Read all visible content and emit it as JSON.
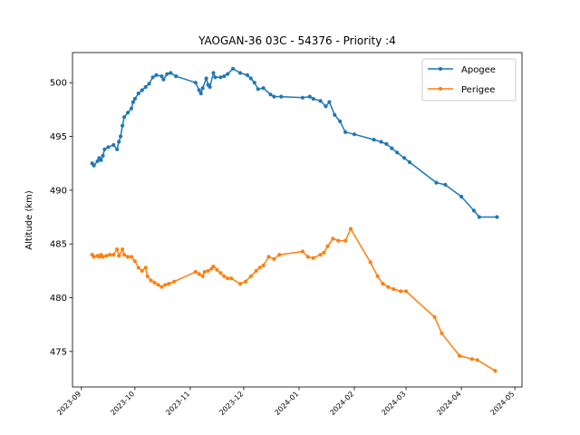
{
  "chart_data": {
    "type": "line",
    "title": "YAOGAN-36 03C - 54376 - Priority :4",
    "xlabel": "",
    "ylabel": "Altitude (km)",
    "xlim": [
      "2023-08-27",
      "2024-05-05"
    ],
    "ylim": [
      471.7,
      502.8
    ],
    "x_ticks": [
      "2023-09",
      "2023-10",
      "2023-11",
      "2023-12",
      "2024-01",
      "2024-02",
      "2024-03",
      "2024-04",
      "2024-05"
    ],
    "y_ticks": [
      475,
      480,
      485,
      490,
      495,
      500
    ],
    "grid": false,
    "legend_position": "top-right",
    "series": [
      {
        "name": "Apogee",
        "color": "#1f77b4",
        "points": [
          [
            "2023-09-07",
            492.5
          ],
          [
            "2023-09-08",
            492.3
          ],
          [
            "2023-09-10",
            492.7
          ],
          [
            "2023-09-11",
            493.0
          ],
          [
            "2023-09-12",
            492.8
          ],
          [
            "2023-09-13",
            493.2
          ],
          [
            "2023-09-14",
            493.8
          ],
          [
            "2023-09-16",
            494.0
          ],
          [
            "2023-09-19",
            494.2
          ],
          [
            "2023-09-21",
            493.8
          ],
          [
            "2023-09-22",
            494.5
          ],
          [
            "2023-09-23",
            495.0
          ],
          [
            "2023-09-24",
            496.0
          ],
          [
            "2023-09-25",
            496.8
          ],
          [
            "2023-09-27",
            497.2
          ],
          [
            "2023-09-29",
            497.6
          ],
          [
            "2023-09-30",
            498.2
          ],
          [
            "2023-10-01",
            498.5
          ],
          [
            "2023-10-03",
            499.0
          ],
          [
            "2023-10-05",
            499.3
          ],
          [
            "2023-10-07",
            499.6
          ],
          [
            "2023-10-09",
            499.9
          ],
          [
            "2023-10-11",
            500.5
          ],
          [
            "2023-10-13",
            500.7
          ],
          [
            "2023-10-16",
            500.6
          ],
          [
            "2023-10-17",
            500.3
          ],
          [
            "2023-10-19",
            500.8
          ],
          [
            "2023-10-21",
            500.9
          ],
          [
            "2023-10-24",
            500.6
          ],
          [
            "2023-11-04",
            500.0
          ],
          [
            "2023-11-06",
            499.3
          ],
          [
            "2023-11-07",
            499.0
          ],
          [
            "2023-11-08",
            499.5
          ],
          [
            "2023-11-10",
            500.4
          ],
          [
            "2023-11-11",
            499.8
          ],
          [
            "2023-11-12",
            499.6
          ],
          [
            "2023-11-14",
            500.9
          ],
          [
            "2023-11-15",
            500.5
          ],
          [
            "2023-11-18",
            500.5
          ],
          [
            "2023-11-20",
            500.6
          ],
          [
            "2023-11-22",
            500.8
          ],
          [
            "2023-11-25",
            501.3
          ],
          [
            "2023-11-29",
            500.9
          ],
          [
            "2023-12-03",
            500.7
          ],
          [
            "2023-12-05",
            500.4
          ],
          [
            "2023-12-07",
            500.0
          ],
          [
            "2023-12-09",
            499.4
          ],
          [
            "2023-12-12",
            499.5
          ],
          [
            "2023-12-16",
            498.9
          ],
          [
            "2023-12-18",
            498.7
          ],
          [
            "2023-12-22",
            498.7
          ],
          [
            "2024-01-03",
            498.6
          ],
          [
            "2024-01-07",
            498.7
          ],
          [
            "2024-01-09",
            498.5
          ],
          [
            "2024-01-13",
            498.3
          ],
          [
            "2024-01-16",
            497.8
          ],
          [
            "2024-01-18",
            498.2
          ],
          [
            "2024-01-21",
            497.0
          ],
          [
            "2024-01-24",
            496.4
          ],
          [
            "2024-01-27",
            495.4
          ],
          [
            "2024-02-01",
            495.2
          ],
          [
            "2024-02-12",
            494.7
          ],
          [
            "2024-02-16",
            494.5
          ],
          [
            "2024-02-19",
            494.3
          ],
          [
            "2024-02-22",
            493.9
          ],
          [
            "2024-02-25",
            493.5
          ],
          [
            "2024-02-29",
            493.0
          ],
          [
            "2024-03-03",
            492.6
          ],
          [
            "2024-03-18",
            490.7
          ],
          [
            "2024-03-23",
            490.5
          ],
          [
            "2024-04-01",
            489.4
          ],
          [
            "2024-04-08",
            488.1
          ],
          [
            "2024-04-11",
            487.5
          ],
          [
            "2024-04-21",
            487.5
          ]
        ]
      },
      {
        "name": "Perigee",
        "color": "#ff7f0e",
        "points": [
          [
            "2023-09-07",
            484.0
          ],
          [
            "2023-09-08",
            483.8
          ],
          [
            "2023-09-10",
            483.9
          ],
          [
            "2023-09-11",
            483.8
          ],
          [
            "2023-09-12",
            484.0
          ],
          [
            "2023-09-13",
            483.8
          ],
          [
            "2023-09-15",
            483.9
          ],
          [
            "2023-09-17",
            484.0
          ],
          [
            "2023-09-19",
            484.0
          ],
          [
            "2023-09-21",
            484.5
          ],
          [
            "2023-09-22",
            483.9
          ],
          [
            "2023-09-24",
            484.5
          ],
          [
            "2023-09-25",
            484.0
          ],
          [
            "2023-09-27",
            483.8
          ],
          [
            "2023-09-29",
            483.8
          ],
          [
            "2023-10-01",
            483.4
          ],
          [
            "2023-10-03",
            482.8
          ],
          [
            "2023-10-05",
            482.5
          ],
          [
            "2023-10-07",
            482.8
          ],
          [
            "2023-10-08",
            482.0
          ],
          [
            "2023-10-10",
            481.6
          ],
          [
            "2023-10-12",
            481.4
          ],
          [
            "2023-10-14",
            481.2
          ],
          [
            "2023-10-16",
            481.0
          ],
          [
            "2023-10-18",
            481.2
          ],
          [
            "2023-10-20",
            481.3
          ],
          [
            "2023-10-23",
            481.5
          ],
          [
            "2023-11-04",
            482.4
          ],
          [
            "2023-11-06",
            482.2
          ],
          [
            "2023-11-08",
            482.0
          ],
          [
            "2023-11-09",
            482.4
          ],
          [
            "2023-11-11",
            482.5
          ],
          [
            "2023-11-13",
            482.7
          ],
          [
            "2023-11-14",
            482.9
          ],
          [
            "2023-11-16",
            482.6
          ],
          [
            "2023-11-18",
            482.3
          ],
          [
            "2023-11-20",
            482.0
          ],
          [
            "2023-11-22",
            481.8
          ],
          [
            "2023-11-24",
            481.8
          ],
          [
            "2023-11-29",
            481.3
          ],
          [
            "2023-12-02",
            481.5
          ],
          [
            "2023-12-05",
            482.0
          ],
          [
            "2023-12-08",
            482.5
          ],
          [
            "2023-12-10",
            482.8
          ],
          [
            "2023-12-12",
            483.0
          ],
          [
            "2023-12-15",
            483.8
          ],
          [
            "2023-12-18",
            483.6
          ],
          [
            "2023-12-21",
            484.0
          ],
          [
            "2024-01-03",
            484.3
          ],
          [
            "2024-01-06",
            483.8
          ],
          [
            "2024-01-09",
            483.7
          ],
          [
            "2024-01-13",
            484.0
          ],
          [
            "2024-01-15",
            484.2
          ],
          [
            "2024-01-17",
            484.8
          ],
          [
            "2024-01-20",
            485.5
          ],
          [
            "2024-01-23",
            485.3
          ],
          [
            "2024-01-27",
            485.3
          ],
          [
            "2024-01-30",
            486.4
          ],
          [
            "2024-02-10",
            483.3
          ],
          [
            "2024-02-14",
            482.0
          ],
          [
            "2024-02-17",
            481.3
          ],
          [
            "2024-02-20",
            481.0
          ],
          [
            "2024-02-23",
            480.8
          ],
          [
            "2024-02-27",
            480.6
          ],
          [
            "2024-03-01",
            480.6
          ],
          [
            "2024-03-17",
            478.2
          ],
          [
            "2024-03-21",
            476.7
          ],
          [
            "2024-03-31",
            474.6
          ],
          [
            "2024-04-07",
            474.3
          ],
          [
            "2024-04-10",
            474.2
          ],
          [
            "2024-04-20",
            473.2
          ]
        ]
      }
    ]
  }
}
